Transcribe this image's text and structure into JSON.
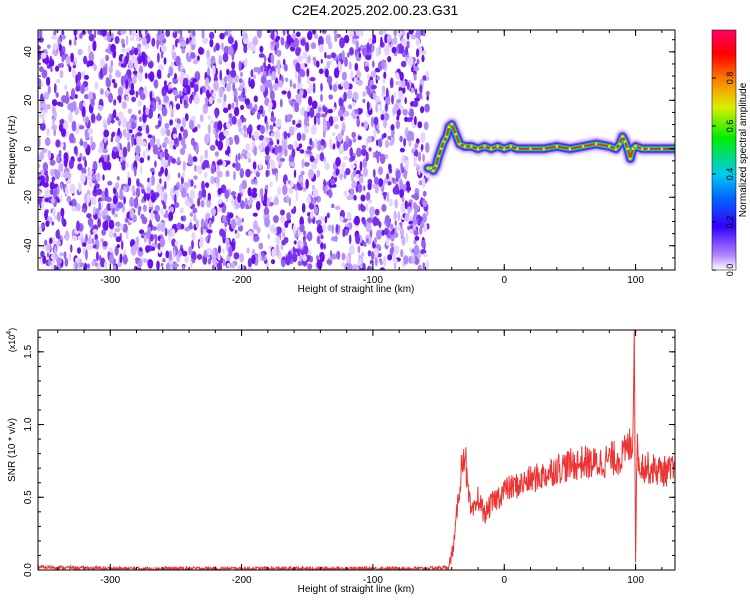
{
  "title": "C2E4.2025.202.00.23.G31",
  "colors": {
    "snr_line": "#ee3333",
    "speck": "#7a1ef0",
    "axis": "#000000"
  },
  "chart_data": [
    {
      "type": "heatmap",
      "title": "",
      "xlabel": "Height of straight line (km)",
      "ylabel": "Frequency (Hz)",
      "xlim": [
        -355,
        130
      ],
      "ylim": [
        -50,
        49
      ],
      "x_ticks": [
        "-300",
        "-200",
        "-100",
        "0",
        "100"
      ],
      "y_ticks": [
        "40",
        "20",
        "0",
        "-20",
        "-40"
      ],
      "colorbar": {
        "label": "Normalized spectral amplitude",
        "range": [
          0,
          1
        ],
        "ticks": [
          "0.0",
          "0.2",
          "0.4",
          "0.6",
          "0.8"
        ]
      },
      "noise_region_x": [
        -355,
        -58
      ],
      "signal_ridge": {
        "x": [
          -58,
          -56,
          -54,
          -52,
          -50,
          -48,
          -46,
          -44,
          -42,
          -40,
          -37,
          -34,
          -30,
          -25,
          -20,
          -15,
          -10,
          -5,
          0,
          5,
          10,
          20,
          30,
          40,
          50,
          60,
          70,
          80,
          85,
          88,
          90,
          92,
          94,
          96,
          98,
          100,
          105,
          110,
          120,
          130
        ],
        "frequency": [
          -8,
          -8,
          -9,
          -7,
          -3,
          0,
          3,
          5,
          9,
          10,
          6,
          2,
          1,
          1,
          0,
          1,
          0,
          1,
          0,
          1,
          0,
          0,
          0,
          1,
          0,
          1,
          2,
          1,
          0,
          2,
          5,
          3,
          0,
          -4,
          0,
          1,
          0,
          0,
          0,
          0
        ]
      }
    },
    {
      "type": "line",
      "title": "",
      "xlabel": "Height of straight line (km)",
      "ylabel": "SNR (10 * v/v)",
      "y_scale_note": "(x10^4)",
      "xlim": [
        -355,
        130
      ],
      "ylim": [
        0,
        1.65
      ],
      "x_ticks": [
        "-300",
        "-200",
        "-100",
        "0",
        "100"
      ],
      "y_ticks": [
        "0.0",
        "0.5",
        "1.0",
        "1.5"
      ],
      "series": [
        {
          "x": [
            -355,
            -300,
            -200,
            -100,
            -60,
            -42,
            -38,
            -35,
            -32,
            -30,
            -28,
            -25,
            -22,
            -20,
            -15,
            -10,
            -5,
            0,
            10,
            20,
            30,
            40,
            50,
            60,
            70,
            80,
            90,
            95,
            98,
            99,
            100,
            101,
            102,
            105,
            110,
            120,
            130
          ],
          "y": [
            0.02,
            0.01,
            0.01,
            0.01,
            0.01,
            0.02,
            0.2,
            0.5,
            0.75,
            0.85,
            0.55,
            0.38,
            0.42,
            0.5,
            0.38,
            0.45,
            0.5,
            0.55,
            0.58,
            0.62,
            0.65,
            0.7,
            0.72,
            0.74,
            0.73,
            0.76,
            0.78,
            0.85,
            0.9,
            1.65,
            0.05,
            0.9,
            0.75,
            0.72,
            0.7,
            0.68,
            0.68
          ]
        }
      ]
    }
  ]
}
